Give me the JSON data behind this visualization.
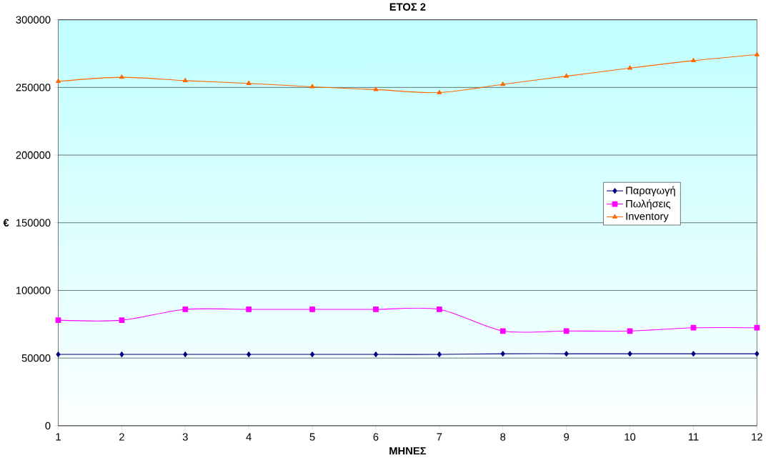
{
  "chart_data": {
    "type": "line",
    "title": "ΕΤΟΣ 2",
    "xlabel": "ΜΗΝΕΣ",
    "ylabel": "€",
    "x": [
      1,
      2,
      3,
      4,
      5,
      6,
      7,
      8,
      9,
      10,
      11,
      12
    ],
    "xlim": [
      1,
      12
    ],
    "xticks": [
      1,
      2,
      3,
      4,
      5,
      6,
      7,
      8,
      9,
      10,
      11,
      12
    ],
    "ylim": [
      0,
      300000
    ],
    "yticks": [
      0,
      50000,
      100000,
      150000,
      200000,
      250000,
      300000
    ],
    "grid": "y",
    "legend": "right",
    "series": [
      {
        "name": "Παραγωγή",
        "color": "#000080",
        "marker": "diamond",
        "values": [
          52700,
          52700,
          52700,
          52700,
          52700,
          52700,
          52700,
          53200,
          53200,
          53200,
          53200,
          53200
        ]
      },
      {
        "name": "Πωλήσεις",
        "color": "#ff00ff",
        "marker": "square",
        "values": [
          78000,
          78000,
          86000,
          86000,
          86000,
          86000,
          86000,
          70000,
          70000,
          70000,
          72400,
          72400
        ]
      },
      {
        "name": "Inventory",
        "color": "#ff6600",
        "marker": "triangle",
        "values": [
          254500,
          257500,
          255000,
          253000,
          250500,
          248400,
          246200,
          252300,
          258300,
          264300,
          269800,
          274200
        ]
      }
    ]
  }
}
